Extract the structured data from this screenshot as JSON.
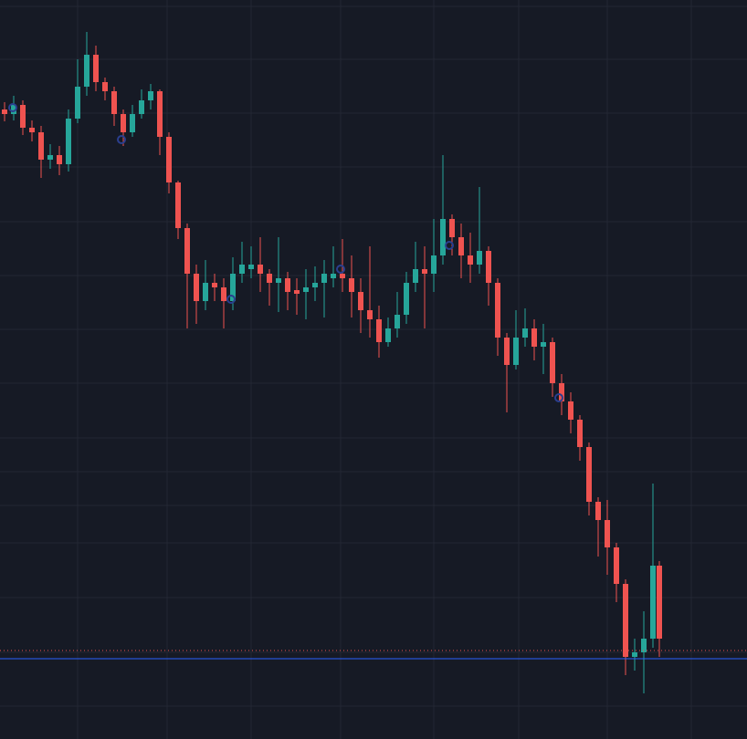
{
  "chart_data": {
    "type": "candlestick",
    "background": "#161a25",
    "grid": true,
    "grid_color": "#232733",
    "up_color": "#26a69a",
    "down_color": "#ef5350",
    "xlim": [
      0,
      818
    ],
    "ylim": [
      0,
      810
    ],
    "xticks": [
      85,
      183,
      275,
      373,
      475,
      568,
      665,
      757
    ],
    "yticks": [
      36,
      95,
      155,
      215,
      256,
      293,
      330,
      390,
      449,
      508,
      567,
      627,
      686,
      745,
      803
    ],
    "x": [
      5,
      15,
      25,
      35,
      45,
      55,
      65,
      75,
      85,
      95,
      105,
      115,
      125,
      135,
      145,
      155,
      165,
      175,
      185,
      195,
      205,
      215,
      225,
      235,
      245,
      255,
      265,
      275,
      285,
      295,
      305,
      315,
      325,
      335,
      345,
      355,
      365,
      375,
      385,
      395,
      405,
      415,
      425,
      435,
      445,
      455,
      465,
      475,
      485,
      495,
      505,
      515,
      525,
      535,
      545,
      555,
      565,
      575,
      585,
      595,
      605,
      615,
      625,
      635,
      645,
      655,
      665,
      675,
      685,
      695,
      705,
      715,
      722
    ],
    "open": [
      690,
      685,
      695,
      670,
      665,
      635,
      640,
      630,
      680,
      715,
      750,
      720,
      710,
      685,
      665,
      685,
      700,
      710,
      660,
      610,
      560,
      510,
      480,
      500,
      495,
      480,
      510,
      515,
      520,
      510,
      500,
      505,
      492,
      490,
      495,
      500,
      505,
      510,
      505,
      490,
      470,
      460,
      435,
      450,
      465,
      500,
      515,
      510,
      530,
      570,
      550,
      530,
      520,
      535,
      500,
      440,
      410,
      440,
      450,
      430,
      435,
      390,
      370,
      350,
      320,
      260,
      240,
      210,
      170,
      90,
      95,
      110,
      190
    ],
    "high": [
      698,
      705,
      700,
      678,
      672,
      652,
      650,
      690,
      745,
      775,
      760,
      725,
      715,
      690,
      695,
      712,
      718,
      712,
      665,
      612,
      565,
      520,
      525,
      510,
      505,
      528,
      545,
      540,
      550,
      515,
      550,
      512,
      505,
      515,
      518,
      525,
      540,
      548,
      530,
      505,
      540,
      475,
      462,
      490,
      512,
      545,
      540,
      570,
      640,
      575,
      565,
      555,
      605,
      540,
      505,
      445,
      470,
      472,
      460,
      455,
      440,
      400,
      380,
      355,
      325,
      265,
      262,
      215,
      175,
      110,
      140,
      280,
      195
    ],
    "low": [
      677,
      678,
      662,
      655,
      615,
      625,
      618,
      622,
      675,
      705,
      710,
      700,
      672,
      650,
      660,
      680,
      690,
      640,
      598,
      548,
      450,
      455,
      470,
      480,
      450,
      470,
      500,
      505,
      490,
      475,
      468,
      470,
      465,
      460,
      480,
      462,
      495,
      490,
      462,
      445,
      440,
      418,
      430,
      440,
      455,
      490,
      450,
      490,
      520,
      530,
      505,
      500,
      510,
      475,
      420,
      358,
      405,
      430,
      415,
      400,
      375,
      355,
      335,
      305,
      245,
      200,
      180,
      150,
      70,
      75,
      50,
      100,
      90
    ],
    "close": [
      685,
      695,
      670,
      665,
      635,
      640,
      630,
      680,
      715,
      750,
      720,
      710,
      685,
      665,
      685,
      700,
      710,
      660,
      610,
      560,
      510,
      480,
      500,
      495,
      480,
      510,
      520,
      520,
      510,
      500,
      505,
      490,
      488,
      495,
      500,
      510,
      510,
      505,
      490,
      470,
      460,
      435,
      450,
      465,
      500,
      515,
      510,
      530,
      570,
      550,
      530,
      520,
      535,
      500,
      440,
      410,
      440,
      450,
      430,
      435,
      390,
      370,
      350,
      320,
      260,
      240,
      210,
      170,
      90,
      95,
      110,
      190,
      110
    ],
    "markers": {
      "color": "#2a3f8f",
      "x": [
        14,
        133,
        253,
        373,
        492,
        612
      ],
      "values": [
        692,
        657,
        482,
        515,
        541,
        374
      ]
    },
    "price_lines": [
      {
        "value": 88,
        "color": "#2962ff",
        "style": "solid"
      },
      {
        "value": 97,
        "color": "#ef5350",
        "style": "dotted"
      }
    ]
  }
}
